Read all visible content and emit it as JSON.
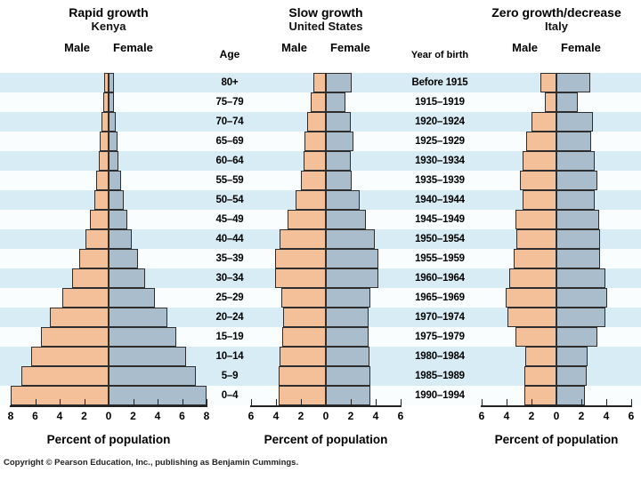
{
  "ui": {
    "age_header": "Age",
    "year_header": "Year of birth",
    "copyright": "Copyright © Pearson Education, Inc., publishing as Benjamin Cummings.",
    "colors": {
      "male_bar": "#F4C099",
      "female_bar": "#A9BDCC",
      "bar_outline": "#2E2E2E",
      "stripe_blue": "#D7ECF4",
      "stripe_white": "#FAFDFE"
    }
  },
  "age_groups": [
    "80+",
    "75–79",
    "70–74",
    "65–69",
    "60–64",
    "55–59",
    "50–54",
    "45–49",
    "40–44",
    "35–39",
    "30–34",
    "25–29",
    "20–24",
    "15–19",
    "10–14",
    "5–9",
    "0–4"
  ],
  "birth_years": [
    "Before 1915",
    "1915–1919",
    "1920–1924",
    "1925–1929",
    "1930–1934",
    "1935–1939",
    "1940–1944",
    "1945–1949",
    "1950–1954",
    "1955–1959",
    "1960–1964",
    "1965–1969",
    "1970–1974",
    "1975–1979",
    "1980–1984",
    "1985–1989",
    "1990–1994"
  ],
  "chart_data": [
    {
      "type": "bar",
      "subtype": "population_pyramid",
      "title": "Rapid growth",
      "subtitle": "Kenya",
      "xlabel": "Percent of population",
      "axis_ticks": [
        "8",
        "6",
        "4",
        "2",
        "0",
        "2",
        "4",
        "6",
        "8"
      ],
      "axis_max_percent_each_side": 8,
      "categories": [
        "80+",
        "75–79",
        "70–74",
        "65–69",
        "60–64",
        "55–59",
        "50–54",
        "45–49",
        "40–44",
        "35–39",
        "30–34",
        "25–29",
        "20–24",
        "15–19",
        "10–14",
        "5–9",
        "0–4"
      ],
      "series": [
        {
          "name": "Male",
          "values": [
            0.4,
            0.45,
            0.55,
            0.7,
            0.8,
            1.0,
            1.2,
            1.5,
            1.9,
            2.4,
            3.0,
            3.8,
            4.8,
            5.5,
            6.3,
            7.1,
            8.0
          ]
        },
        {
          "name": "Female",
          "values": [
            0.4,
            0.45,
            0.55,
            0.7,
            0.8,
            1.0,
            1.2,
            1.5,
            1.9,
            2.4,
            3.0,
            3.8,
            4.8,
            5.5,
            6.3,
            7.1,
            8.0
          ]
        }
      ]
    },
    {
      "type": "bar",
      "subtype": "population_pyramid",
      "title": "Slow growth",
      "subtitle": "United States",
      "xlabel": "Percent of population",
      "axis_ticks": [
        "6",
        "4",
        "2",
        "0",
        "2",
        "4",
        "6"
      ],
      "axis_max_percent_each_side": 6,
      "categories": [
        "80+",
        "75–79",
        "70–74",
        "65–69",
        "60–64",
        "55–59",
        "50–54",
        "45–49",
        "40–44",
        "35–39",
        "30–34",
        "25–29",
        "20–24",
        "15–19",
        "10–14",
        "5–9",
        "0–4"
      ],
      "series": [
        {
          "name": "Male",
          "values": [
            1.0,
            1.2,
            1.5,
            1.7,
            1.8,
            2.0,
            2.4,
            3.1,
            3.7,
            4.1,
            4.1,
            3.6,
            3.4,
            3.5,
            3.7,
            3.8,
            3.8
          ]
        },
        {
          "name": "Female",
          "values": [
            2.1,
            1.6,
            2.0,
            2.2,
            2.0,
            2.1,
            2.7,
            3.2,
            3.9,
            4.2,
            4.2,
            3.6,
            3.4,
            3.4,
            3.5,
            3.6,
            3.6
          ]
        }
      ]
    },
    {
      "type": "bar",
      "subtype": "population_pyramid",
      "title": "Zero growth/decrease",
      "subtitle": "Italy",
      "xlabel": "Percent of population",
      "axis_ticks": [
        "6",
        "4",
        "2",
        "0",
        "2",
        "4",
        "6"
      ],
      "axis_max_percent_each_side": 6,
      "categories": [
        "80+",
        "75–79",
        "70–74",
        "65–69",
        "60–64",
        "55–59",
        "50–54",
        "45–49",
        "40–44",
        "35–39",
        "30–34",
        "25–29",
        "20–24",
        "15–19",
        "10–14",
        "5–9",
        "0–4"
      ],
      "series": [
        {
          "name": "Male",
          "values": [
            1.3,
            0.9,
            2.0,
            2.4,
            2.7,
            2.9,
            2.7,
            3.3,
            3.2,
            3.4,
            3.8,
            4.1,
            3.9,
            3.3,
            2.5,
            2.55,
            2.55
          ]
        },
        {
          "name": "Female",
          "values": [
            2.7,
            1.7,
            2.9,
            2.8,
            3.1,
            3.3,
            3.1,
            3.4,
            3.5,
            3.5,
            3.9,
            4.1,
            3.9,
            3.3,
            2.5,
            2.45,
            2.25
          ]
        }
      ]
    }
  ]
}
